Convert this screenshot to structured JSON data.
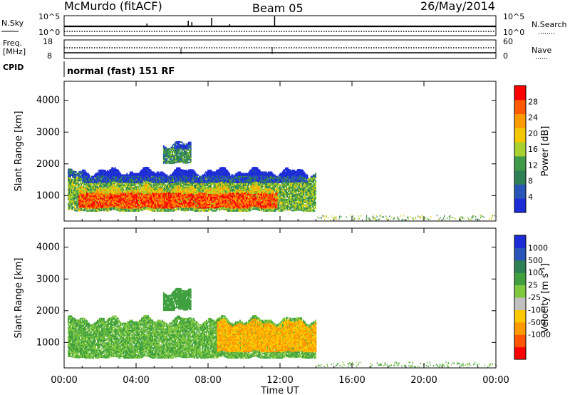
{
  "header": {
    "station": "McMurdo (fitACF)",
    "beam": "Beam 05",
    "date": "26/May/2014"
  },
  "aux_panels": {
    "nsky_label": "N.Sky",
    "nsky_top": "10^5",
    "nsky_bottom": "10^0",
    "nsearch_label": "N.Search",
    "nsearch_top": "10^5",
    "nsearch_bottom": "10^0",
    "freq_label": "Freq.",
    "freq_unit": "[MHz]",
    "freq_top": "18",
    "freq_bottom": "8",
    "nave_label": "Nave",
    "nave_top": "60",
    "nave_bottom": "0",
    "cpid_label": "CPID",
    "cpid_text": "normal (fast) 151 RF"
  },
  "colors": {
    "power_scale": [
      "#1e2cd8",
      "#2a55b8",
      "#2f7f54",
      "#3f9a4a",
      "#a8d030",
      "#f4c800",
      "#ff9a00",
      "#ff5a00",
      "#ff0000"
    ],
    "velocity_scale": [
      "#ff0000",
      "#ff5500",
      "#ff9900",
      "#ffc800",
      "#c0c0c0",
      "#80c840",
      "#40a040",
      "#2f7f54",
      "#2a55b8",
      "#1e2cd8"
    ],
    "frame": "#000000",
    "background": "#ffffff"
  },
  "chart_data": [
    {
      "type": "heatmap",
      "name": "power",
      "x_axis_unit": "UT hours",
      "xlim": [
        0,
        24
      ],
      "ylim": [
        200,
        4600
      ],
      "ylabel": "Slant Range [km]",
      "yticks": [
        1000,
        2000,
        3000,
        4000
      ],
      "colorbar_label": "Power [dB]",
      "colorbar_ticks": [
        4,
        8,
        12,
        16,
        20,
        24,
        28
      ],
      "colorbar_range": [
        0,
        32
      ],
      "echo_regions": [
        {
          "t_start": 0.2,
          "t_end": 14.0,
          "r_low": 500,
          "r_high": 1700,
          "value": 14
        },
        {
          "t_start": 0.8,
          "t_end": 11.8,
          "r_low": 600,
          "r_high": 1200,
          "value": 27
        },
        {
          "t_start": 5.5,
          "t_end": 7.0,
          "r_low": 2000,
          "r_high": 2600,
          "value": 11
        },
        {
          "t_start": 1.0,
          "t_end": 13.5,
          "r_low": 1400,
          "r_high": 1750,
          "value": 5
        }
      ]
    },
    {
      "type": "heatmap",
      "name": "velocity",
      "x_axis_unit": "UT hours",
      "xlim": [
        0,
        24
      ],
      "ylim": [
        200,
        4600
      ],
      "ylabel": "Slant Range [km]",
      "yticks": [
        1000,
        2000,
        3000,
        4000
      ],
      "xticks": [
        "00:00",
        "04:00",
        "08:00",
        "12:00",
        "16:00",
        "20:00",
        "00:00"
      ],
      "xlabel": "Time UT",
      "colorbar_label": "Velocity [m s^-1]",
      "colorbar_ticks": [
        "1000",
        "500",
        "100",
        "25",
        "-25",
        "-100",
        "-500",
        "-1000"
      ],
      "echo_regions": [
        {
          "t_start": 0.2,
          "t_end": 14.0,
          "r_low": 500,
          "r_high": 1700,
          "value": 100
        },
        {
          "t_start": 8.5,
          "t_end": 14.0,
          "r_low": 700,
          "r_high": 1600,
          "value": -100
        },
        {
          "t_start": 5.5,
          "t_end": 7.0,
          "r_low": 2000,
          "r_high": 2600,
          "value": 200
        }
      ]
    }
  ]
}
